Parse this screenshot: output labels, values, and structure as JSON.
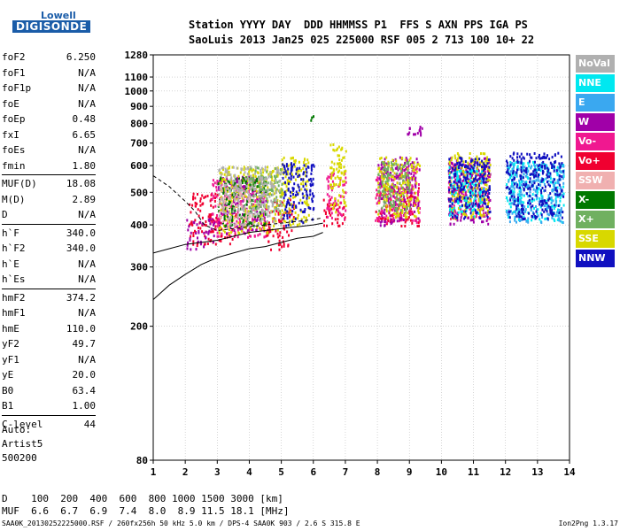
{
  "logo": {
    "line1": "Lowell",
    "line2": "DIGISONDE"
  },
  "header": {
    "line1": "Station YYYY DAY  DDD HHMMSS P1  FFS S AXN PPS IGA PS",
    "line2": "SaoLuis 2013 Jan25 025 225000 RSF 005 2 713 100 10+ 22"
  },
  "params": [
    {
      "k": "foF2",
      "v": "6.250"
    },
    {
      "k": "foF1",
      "v": "N/A"
    },
    {
      "k": "foF1p",
      "v": "N/A"
    },
    {
      "k": "foE",
      "v": "N/A"
    },
    {
      "k": "foEp",
      "v": "0.48"
    },
    {
      "k": "fxI",
      "v": "6.65"
    },
    {
      "k": "foEs",
      "v": "N/A"
    },
    {
      "k": "fmin",
      "v": "1.80"
    },
    {
      "k": "MUF(D)",
      "v": "18.08"
    },
    {
      "k": "M(D)",
      "v": "2.89"
    },
    {
      "k": "D",
      "v": "N/A"
    },
    {
      "k": "h`F",
      "v": "340.0"
    },
    {
      "k": "h`F2",
      "v": "340.0"
    },
    {
      "k": "h`E",
      "v": "N/A"
    },
    {
      "k": "h`Es",
      "v": "N/A"
    },
    {
      "k": "hmF2",
      "v": "374.2"
    },
    {
      "k": "hmF1",
      "v": "N/A"
    },
    {
      "k": "hmE",
      "v": "110.0"
    },
    {
      "k": "yF2",
      "v": "49.7"
    },
    {
      "k": "yF1",
      "v": "N/A"
    },
    {
      "k": "yE",
      "v": "20.0"
    },
    {
      "k": "B0",
      "v": "63.4"
    },
    {
      "k": "B1",
      "v": "1.00"
    },
    {
      "k": "C-level",
      "v": "44"
    }
  ],
  "auto": {
    "line1": "Auto:",
    "line2": "Artist5",
    "line3": "500200"
  },
  "dtable": {
    "row1": "D    100  200  400  600  800 1000 1500 3000 [km]",
    "row2": "MUF  6.6  6.7  6.9  7.4  8.0  8.9 11.5 18.1 [MHz]"
  },
  "footer": {
    "left": "SAA0K_20130252225000.RSF / 260fx256h 50 kHz 5.0 km / DPS-4 SAA0K 903 / 2.6 S 315.8 E",
    "right": "Ion2Png 1.3.17"
  },
  "legend": [
    {
      "label": "NoVal",
      "color": "#b0b0b0"
    },
    {
      "label": "NNE",
      "color": "#00e8f0"
    },
    {
      "label": "E",
      "color": "#3aa8f0"
    },
    {
      "label": "W",
      "color": "#a000a8"
    },
    {
      "label": "Vo-",
      "color": "#f01890"
    },
    {
      "label": "Vo+",
      "color": "#f00030"
    },
    {
      "label": "SSW",
      "color": "#f0b0b0"
    },
    {
      "label": "X-",
      "color": "#007800"
    },
    {
      "label": "X+",
      "color": "#70b060"
    },
    {
      "label": "SSE",
      "color": "#d8d800"
    },
    {
      "label": "NNW",
      "color": "#1010c0"
    }
  ],
  "chart_data": {
    "type": "scatter",
    "title": "",
    "xlabel": "",
    "ylabel": "",
    "xlim": [
      1,
      14
    ],
    "ylim": [
      80,
      1280
    ],
    "x_ticks": [
      1,
      2,
      3,
      4,
      5,
      6,
      7,
      8,
      9,
      10,
      11,
      12,
      13,
      14
    ],
    "y_ticks": [
      80,
      200,
      300,
      400,
      500,
      600,
      700,
      800,
      900,
      1000,
      1100,
      1280
    ],
    "y_scale": "log",
    "grid": true,
    "series": [
      {
        "name": "Vo+",
        "color": "#f00030",
        "clusters": [
          [
            2.1,
            3.6,
            350,
            500
          ],
          [
            4.5,
            5.4,
            340,
            480
          ],
          [
            6.3,
            7.0,
            400,
            480
          ],
          [
            7.9,
            9.3,
            400,
            520
          ]
        ]
      },
      {
        "name": "Vo-",
        "color": "#f01890",
        "clusters": [
          [
            2.8,
            4.5,
            370,
            560
          ],
          [
            6.4,
            7.0,
            420,
            580
          ],
          [
            7.9,
            9.3,
            410,
            600
          ],
          [
            10.2,
            11.5,
            420,
            620
          ]
        ]
      },
      {
        "name": "W",
        "color": "#a000a8",
        "clusters": [
          [
            2.0,
            2.9,
            340,
            420
          ],
          [
            3.0,
            4.5,
            380,
            560
          ],
          [
            8.0,
            9.3,
            400,
            640
          ],
          [
            10.2,
            11.5,
            400,
            640
          ],
          [
            8.9,
            9.4,
            740,
            790
          ]
        ]
      },
      {
        "name": "SSE",
        "color": "#d8d800",
        "clusters": [
          [
            3.0,
            5.0,
            380,
            600
          ],
          [
            5.0,
            5.9,
            400,
            640
          ],
          [
            6.5,
            7.0,
            440,
            700
          ],
          [
            8.0,
            9.3,
            420,
            640
          ],
          [
            10.2,
            11.5,
            420,
            660
          ]
        ]
      },
      {
        "name": "NNE",
        "color": "#00e8f0",
        "clusters": [
          [
            12.0,
            13.8,
            410,
            620
          ],
          [
            10.2,
            11.3,
            420,
            600
          ]
        ]
      },
      {
        "name": "E",
        "color": "#3aa8f0",
        "clusters": [
          [
            12.0,
            13.8,
            410,
            620
          ]
        ]
      },
      {
        "name": "NNW",
        "color": "#1010c0",
        "clusters": [
          [
            12.0,
            13.8,
            420,
            660
          ],
          [
            10.2,
            11.5,
            420,
            640
          ],
          [
            5.0,
            6.0,
            400,
            620
          ]
        ]
      },
      {
        "name": "X-",
        "color": "#007800",
        "clusters": [
          [
            3.0,
            4.5,
            400,
            560
          ],
          [
            5.9,
            6.0,
            820,
            870
          ]
        ]
      },
      {
        "name": "X+",
        "color": "#70b060",
        "clusters": [
          [
            4.0,
            5.0,
            440,
            600
          ],
          [
            8.0,
            9.0,
            440,
            620
          ]
        ]
      },
      {
        "name": "SSW",
        "color": "#f0b0b0",
        "clusters": [
          [
            3.0,
            4.0,
            400,
            520
          ]
        ]
      },
      {
        "name": "NoVal",
        "color": "#b0b0b0",
        "clusters": [
          [
            3.0,
            5.0,
            400,
            600
          ]
        ]
      }
    ],
    "profile_curve": {
      "x": [
        1.0,
        1.5,
        2.0,
        2.5,
        3.0,
        3.5,
        4.0,
        4.5,
        5.0,
        5.5,
        6.0,
        6.3
      ],
      "y": [
        240,
        265,
        285,
        305,
        320,
        330,
        340,
        345,
        355,
        365,
        370,
        380
      ]
    },
    "trace_o": {
      "x": [
        1.0,
        1.5,
        2.0,
        2.3,
        2.6,
        3.0,
        3.5,
        4.0,
        4.5,
        5.0,
        5.5,
        6.0,
        6.3
      ],
      "y": [
        560,
        520,
        470,
        440,
        400,
        385,
        390,
        395,
        400,
        405,
        410,
        415,
        420
      ]
    },
    "trace_x": {
      "x": [
        1.0,
        1.5,
        2.0,
        2.5,
        3.0,
        3.5,
        4.0,
        4.5,
        5.0,
        5.5,
        6.0,
        6.3
      ],
      "y": [
        330,
        340,
        350,
        355,
        360,
        370,
        380,
        385,
        390,
        395,
        400,
        405
      ]
    }
  }
}
